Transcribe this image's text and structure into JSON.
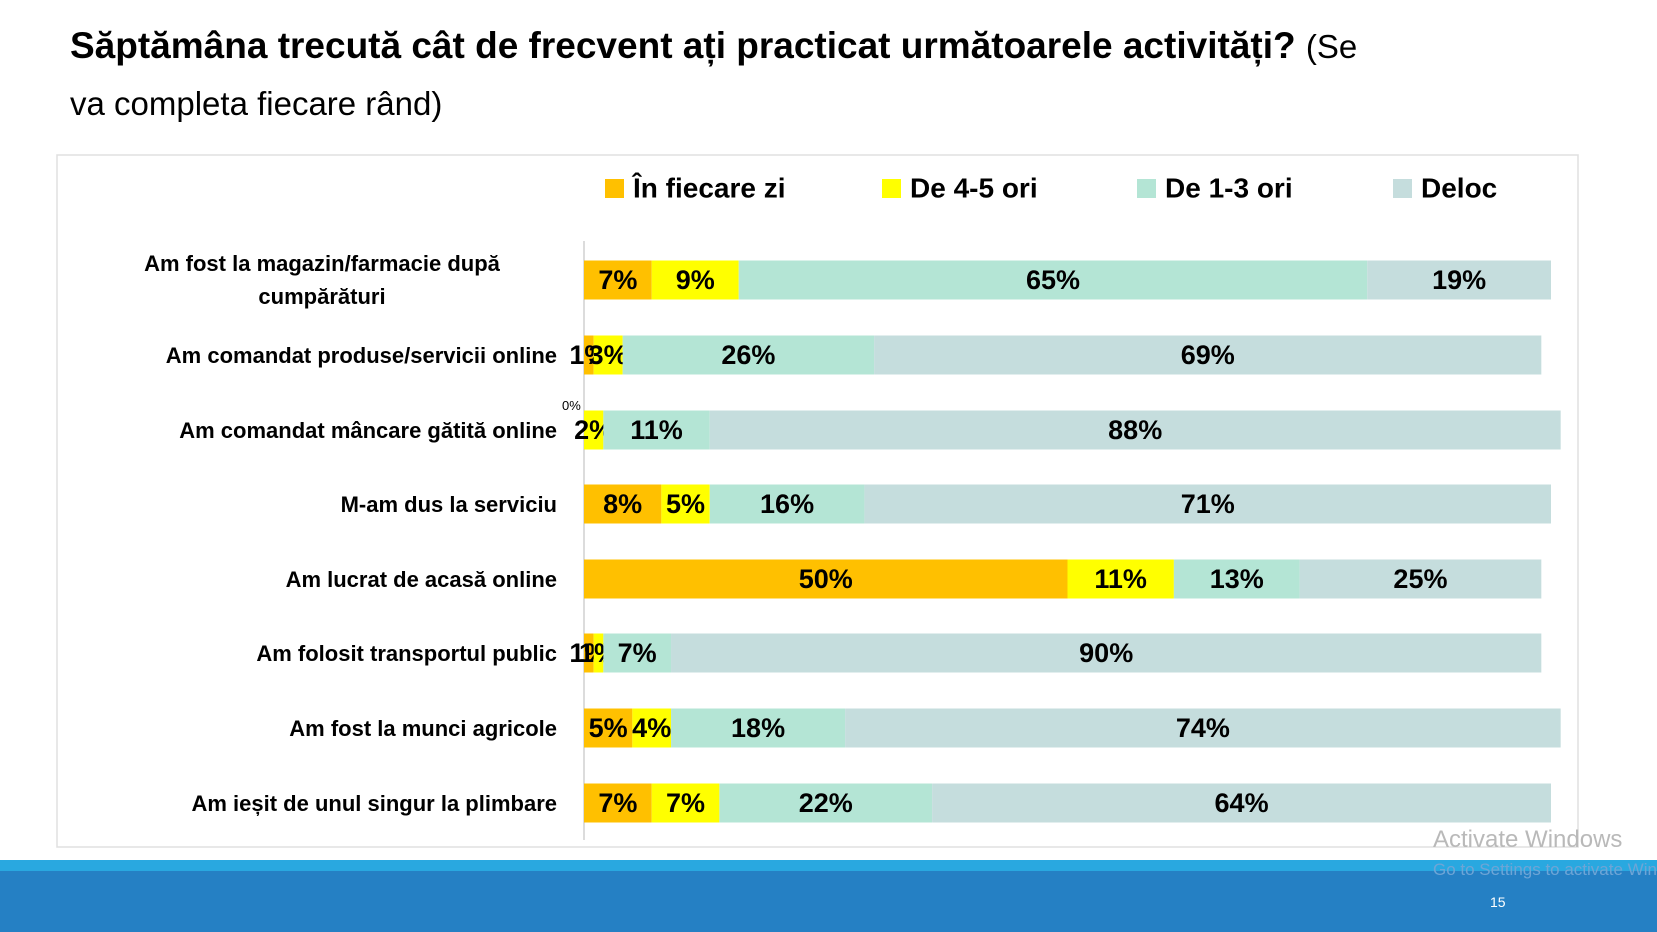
{
  "chart_data": {
    "type": "bar",
    "orientation": "horizontal",
    "stacked": true,
    "title": "Săptămâna trecută cât de frecvent ați practicat următoarele activități?",
    "subtitle": "(Se va completa fiecare rând)",
    "categories": [
      "Am fost la magazin/farmacie după cumpărături",
      "Am comandat produse/servicii online",
      "Am comandat mâncare gătită online",
      "M-am dus la serviciu",
      "Am lucrat de acasă online",
      "Am folosit transportul public",
      "Am fost la munci agricole",
      "Am ieșit de unul singur la plimbare"
    ],
    "xlim": [
      0,
      100
    ],
    "legend": "top",
    "series": [
      {
        "name": "În fiecare zi",
        "color": "#FFC000",
        "values": [
          7,
          1,
          0,
          8,
          50,
          1,
          5,
          7
        ],
        "value_labels": [
          "7%",
          "1%",
          "0%",
          "8%",
          "50%",
          "1%",
          "5%",
          "7%"
        ]
      },
      {
        "name": "De 4-5 ori",
        "color": "#FFFF00",
        "values": [
          9,
          3,
          2,
          5,
          11,
          1,
          4,
          7
        ],
        "value_labels": [
          "9%",
          "3%",
          "2%",
          "5%",
          "11%",
          "1%",
          "4%",
          "7%"
        ]
      },
      {
        "name": "De 1-3 ori",
        "color": "#B4E5D5",
        "values": [
          65,
          26,
          11,
          16,
          13,
          7,
          18,
          22
        ],
        "value_labels": [
          "65%",
          "26%",
          "11%",
          "16%",
          "13%",
          "7%",
          "18%",
          "22%"
        ]
      },
      {
        "name": "Deloc",
        "color": "#C5DDDD",
        "values": [
          19,
          69,
          88,
          71,
          25,
          90,
          74,
          64
        ],
        "value_labels": [
          "19%",
          "69%",
          "88%",
          "71%",
          "25%",
          "90%",
          "74%",
          "64%"
        ]
      }
    ]
  },
  "footer": {
    "watermark": "Activate Windows",
    "watermark_hint": "Go to Settings to activate Windows.",
    "page_number": "15"
  }
}
